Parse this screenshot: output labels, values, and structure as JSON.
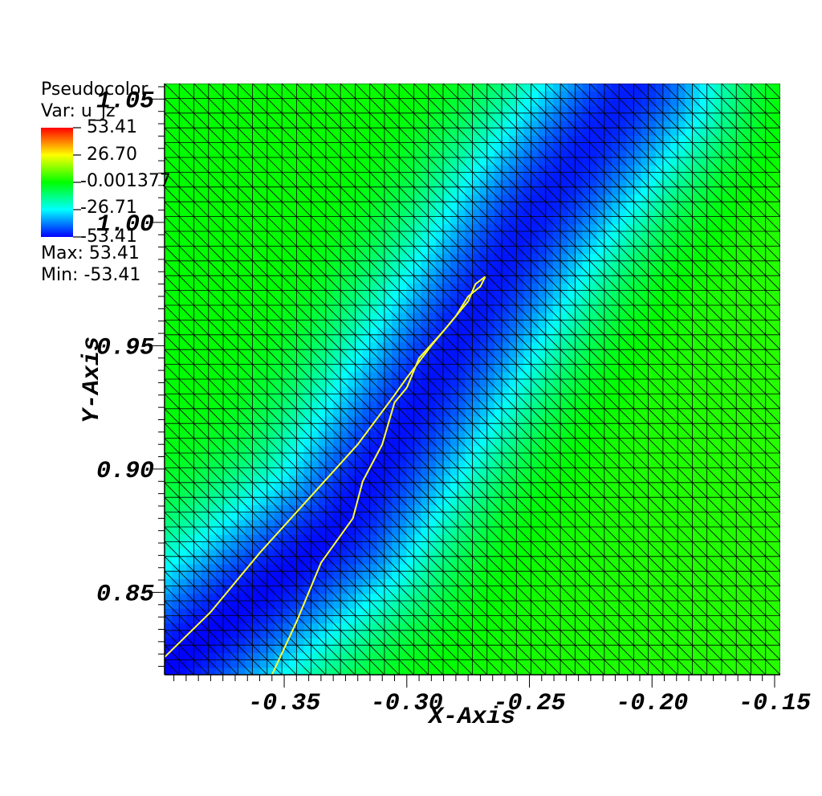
{
  "chart_data": {
    "type": "heatmap",
    "title": "",
    "xlabel": "X-Axis",
    "ylabel": "Y-Axis",
    "xlim": [
      -0.3988,
      -0.1477
    ],
    "ylim": [
      0.8166,
      1.0563
    ],
    "x_ticks": [
      {
        "value": -0.35,
        "label": "-0.35"
      },
      {
        "value": -0.3,
        "label": "-0.30"
      },
      {
        "value": -0.25,
        "label": "-0.25"
      },
      {
        "value": -0.2,
        "label": "-0.20"
      },
      {
        "value": -0.15,
        "label": "-0.15"
      }
    ],
    "y_ticks": [
      {
        "value": 0.85,
        "label": "0.85"
      },
      {
        "value": 0.9,
        "label": "0.90"
      },
      {
        "value": 0.95,
        "label": "0.95"
      },
      {
        "value": 1.0,
        "label": "1.00"
      },
      {
        "value": 1.05,
        "label": "1.05"
      }
    ],
    "mesh": {
      "type": "triangulated-quad-grid",
      "cells_x": 42,
      "cells_y": 40,
      "line_color": "#000000"
    },
    "field": {
      "min": -53.41,
      "max": 53.41,
      "band_path": [
        [
          -0.3988,
          0.819
        ],
        [
          -0.327,
          0.876
        ],
        [
          -0.25,
          1.0
        ],
        [
          -0.207,
          1.056
        ]
      ],
      "band_peak": -53.41,
      "band_halfwidth": 0.027,
      "right_bias": 4.0
    },
    "contour": {
      "color": "#ffff33",
      "left": [
        [
          -0.3988,
          0.8237
        ],
        [
          -0.38,
          0.842
        ],
        [
          -0.36,
          0.866
        ],
        [
          -0.34,
          0.888
        ],
        [
          -0.32,
          0.91
        ],
        [
          -0.305,
          0.93
        ],
        [
          -0.3,
          0.937
        ],
        [
          -0.29,
          0.95
        ],
        [
          -0.28,
          0.962
        ],
        [
          -0.275,
          0.97
        ],
        [
          -0.27,
          0.974
        ],
        [
          -0.268,
          0.978
        ]
      ],
      "right": [
        [
          -0.355,
          0.8166
        ],
        [
          -0.345,
          0.838
        ],
        [
          -0.335,
          0.862
        ],
        [
          -0.322,
          0.88
        ],
        [
          -0.318,
          0.895
        ],
        [
          -0.31,
          0.91
        ],
        [
          -0.305,
          0.927
        ],
        [
          -0.3,
          0.933
        ],
        [
          -0.295,
          0.945
        ],
        [
          -0.285,
          0.956
        ],
        [
          -0.275,
          0.968
        ],
        [
          -0.272,
          0.975
        ],
        [
          -0.268,
          0.978
        ]
      ]
    },
    "grid": false
  },
  "legend": {
    "plot_name": "Pseudocolor",
    "var_label": "Var: u_jz",
    "ticks": [
      "53.41",
      "26.70",
      "-0.001377",
      "-26.71",
      "-53.41"
    ],
    "max_label": "Max:  53.41",
    "min_label": "Min: -53.41",
    "colormap": [
      "#0000ff",
      "#00ffff",
      "#00ff00",
      "#ffff00",
      "#ff0000"
    ]
  }
}
